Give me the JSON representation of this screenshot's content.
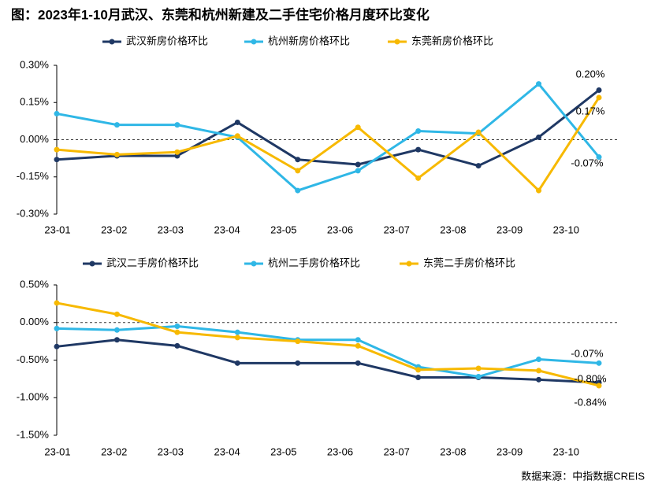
{
  "title": "图：2023年1-10月武汉、东莞和杭州新建及二手住宅价格月度环比变化",
  "source": "数据来源：中指数据CREIS",
  "chart_data": [
    {
      "type": "line",
      "categories": [
        "23-01",
        "23-02",
        "23-03",
        "23-04",
        "23-05",
        "23-06",
        "23-07",
        "23-08",
        "23-09",
        "23-10"
      ],
      "ylim": [
        -0.3,
        0.3
      ],
      "yticks": [
        {
          "value": -0.3,
          "label": "-0.30%"
        },
        {
          "value": -0.15,
          "label": "-0.15%"
        },
        {
          "value": 0,
          "label": "0.00%"
        },
        {
          "value": 0.15,
          "label": "0.15%"
        },
        {
          "value": 0.3,
          "label": "0.30%"
        }
      ],
      "series": [
        {
          "name": "武汉新房价格环比",
          "color": "#1f3864",
          "values": [
            -0.08,
            -0.065,
            -0.065,
            0.07,
            -0.08,
            -0.1,
            -0.04,
            -0.105,
            0.01,
            0.2
          ],
          "value_labels": [
            null,
            null,
            null,
            null,
            null,
            null,
            null,
            null,
            null,
            "0.20%"
          ]
        },
        {
          "name": "杭州新房价格环比",
          "color": "#2fb7e6",
          "values": [
            0.105,
            0.06,
            0.06,
            0.01,
            -0.205,
            -0.125,
            0.035,
            0.025,
            0.225,
            -0.07
          ],
          "value_labels": [
            null,
            null,
            null,
            null,
            null,
            null,
            null,
            null,
            null,
            "-0.07%"
          ]
        },
        {
          "name": "东莞新房价格环比",
          "color": "#f7b900",
          "values": [
            -0.04,
            -0.06,
            -0.05,
            0.015,
            -0.125,
            0.05,
            -0.155,
            0.03,
            -0.205,
            0.17
          ],
          "value_labels": [
            null,
            null,
            null,
            null,
            null,
            null,
            null,
            null,
            null,
            "0.17%"
          ]
        }
      ]
    },
    {
      "type": "line",
      "categories": [
        "23-01",
        "23-02",
        "23-03",
        "23-04",
        "23-05",
        "23-06",
        "23-07",
        "23-08",
        "23-09",
        "23-10"
      ],
      "ylim": [
        -1.5,
        0.5
      ],
      "yticks": [
        {
          "value": -1.5,
          "label": "-1.50%"
        },
        {
          "value": -1,
          "label": "-1.00%"
        },
        {
          "value": -0.5,
          "label": "-0.50%"
        },
        {
          "value": 0,
          "label": "0.00%"
        },
        {
          "value": 0.5,
          "label": "0.50%"
        }
      ],
      "series": [
        {
          "name": "武汉二手房价格环比",
          "color": "#1f3864",
          "values": [
            -0.32,
            -0.23,
            -0.31,
            -0.54,
            -0.54,
            -0.54,
            -0.73,
            -0.73,
            -0.76,
            -0.8
          ]
        },
        {
          "name": "杭州二手房价格环比",
          "color": "#2fb7e6",
          "values": [
            -0.08,
            -0.1,
            -0.05,
            -0.13,
            -0.23,
            -0.23,
            -0.59,
            -0.72,
            -0.49,
            -0.54
          ]
        },
        {
          "name": "东莞二手房价格环比",
          "color": "#f7b900",
          "values": [
            0.26,
            0.11,
            -0.13,
            -0.2,
            -0.25,
            -0.31,
            -0.63,
            -0.61,
            -0.64,
            -0.84
          ]
        }
      ],
      "annotations": [
        "-0.07%",
        "-0.80%",
        "-0.84%"
      ]
    }
  ]
}
